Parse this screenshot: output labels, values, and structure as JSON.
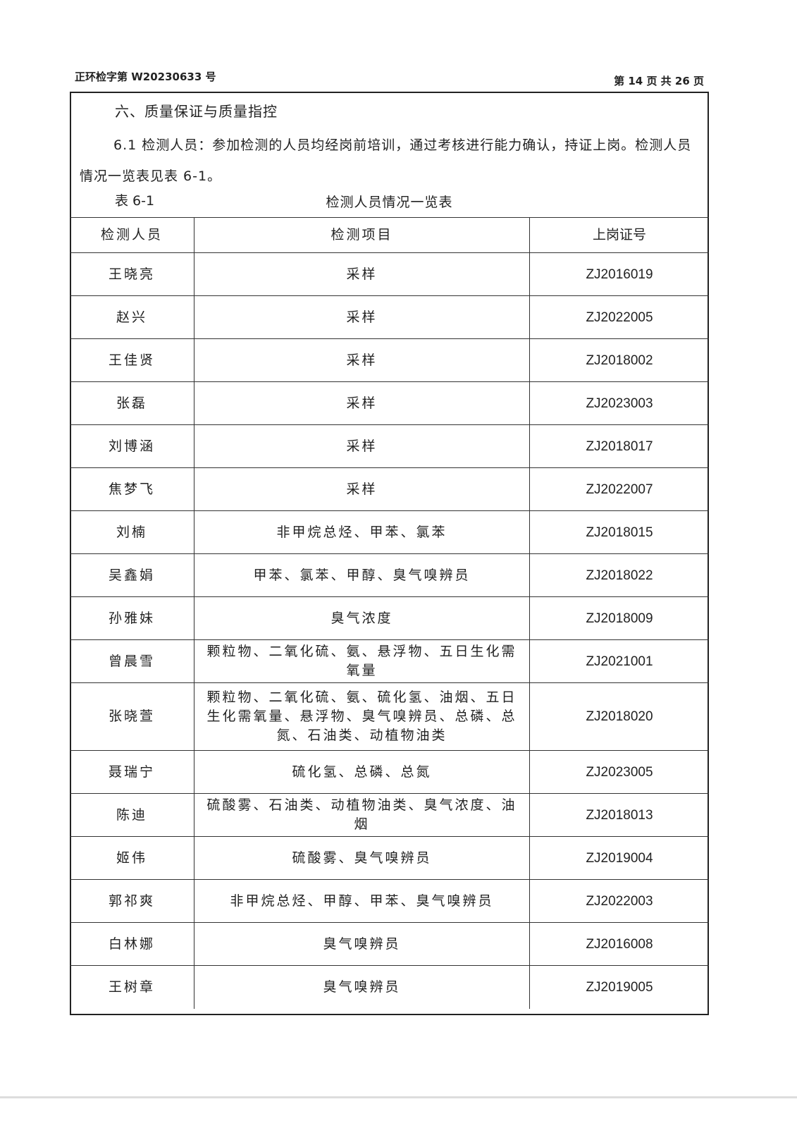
{
  "header": {
    "report_no": "正环检字第 W20230633 号",
    "page": "第 14 页 共 26 页"
  },
  "section": {
    "title": "六、质量保证与质量指控",
    "paragraph": "6.1 检测人员：参加检测的人员均经岗前培训，通过考核进行能力确认，持证上岗。检测人员情况一览表见表 6-1。"
  },
  "table": {
    "number": "表 6-1",
    "caption": "检测人员情况一览表",
    "columns": [
      "检测人员",
      "检测项目",
      "上岗证号"
    ],
    "rows": [
      {
        "name": "王晓亮",
        "items": "采样",
        "cert": "ZJ2016019"
      },
      {
        "name": "赵兴",
        "items": "采样",
        "cert": "ZJ2022005"
      },
      {
        "name": "王佳贤",
        "items": "采样",
        "cert": "ZJ2018002"
      },
      {
        "name": "张磊",
        "items": "采样",
        "cert": "ZJ2023003"
      },
      {
        "name": "刘博涵",
        "items": "采样",
        "cert": "ZJ2018017"
      },
      {
        "name": "焦梦飞",
        "items": "采样",
        "cert": "ZJ2022007"
      },
      {
        "name": "刘楠",
        "items": "非甲烷总烃、甲苯、氯苯",
        "cert": "ZJ2018015"
      },
      {
        "name": "吴鑫娟",
        "items": "甲苯、氯苯、甲醇、臭气嗅辨员",
        "cert": "ZJ2018022"
      },
      {
        "name": "孙雅妹",
        "items": "臭气浓度",
        "cert": "ZJ2018009"
      },
      {
        "name": "曾晨雪",
        "items": "颗粒物、二氧化硫、氨、悬浮物、五日生化需氧量",
        "cert": "ZJ2021001"
      },
      {
        "name": "张晓萱",
        "items": "颗粒物、二氧化硫、氨、硫化氢、油烟、五日生化需氧量、悬浮物、臭气嗅辨员、总磷、总氮、石油类、动植物油类",
        "cert": "ZJ2018020"
      },
      {
        "name": "聂瑞宁",
        "items": "硫化氢、总磷、总氮",
        "cert": "ZJ2023005"
      },
      {
        "name": "陈迪",
        "items": "硫酸雾、石油类、动植物油类、臭气浓度、油烟",
        "cert": "ZJ2018013"
      },
      {
        "name": "姬伟",
        "items": "硫酸雾、臭气嗅辨员",
        "cert": "ZJ2019004"
      },
      {
        "name": "郭祁爽",
        "items": "非甲烷总烃、甲醇、甲苯、臭气嗅辨员",
        "cert": "ZJ2022003"
      },
      {
        "name": "白林娜",
        "items": "臭气嗅辨员",
        "cert": "ZJ2016008"
      },
      {
        "name": "王树章",
        "items": "臭气嗅辨员",
        "cert": "ZJ2019005"
      }
    ]
  }
}
